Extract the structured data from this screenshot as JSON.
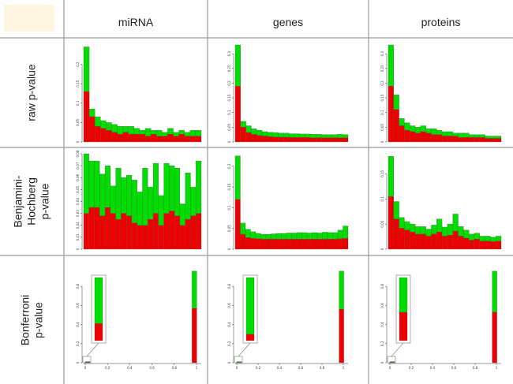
{
  "columns": [
    "miRNA",
    "genes",
    "proteins"
  ],
  "rows": [
    {
      "lines": [
        "raw p-value"
      ]
    },
    {
      "lines": [
        "Benjamini-",
        "Hochberg",
        "p-value"
      ]
    },
    {
      "lines": [
        "Bonferroni",
        "p-value"
      ]
    }
  ],
  "colors": {
    "total": "#00dd00",
    "significant": "#ee0000",
    "grid": "#999999",
    "frame": "#cfcfcf"
  },
  "chart_data": [
    {
      "type": "bar",
      "row": "raw p-value",
      "column": "miRNA",
      "ylim": [
        0,
        0.25
      ],
      "yticks": [
        0,
        0.05,
        0.1,
        0.15,
        0.2
      ],
      "total": [
        0.245,
        0.085,
        0.065,
        0.055,
        0.05,
        0.045,
        0.04,
        0.04,
        0.04,
        0.035,
        0.03,
        0.035,
        0.03,
        0.03,
        0.025,
        0.035,
        0.025,
        0.03,
        0.025,
        0.03,
        0.03
      ],
      "significant": [
        0.13,
        0.065,
        0.04,
        0.035,
        0.03,
        0.025,
        0.02,
        0.025,
        0.02,
        0.02,
        0.02,
        0.015,
        0.02,
        0.015,
        0.015,
        0.02,
        0.015,
        0.02,
        0.015,
        0.015,
        0.015
      ]
    },
    {
      "type": "bar",
      "row": "raw p-value",
      "column": "genes",
      "ylim": [
        0,
        0.33
      ],
      "yticks": [
        0,
        0.05,
        0.1,
        0.15,
        0.2,
        0.25,
        0.3
      ],
      "total": [
        0.33,
        0.07,
        0.055,
        0.045,
        0.04,
        0.035,
        0.033,
        0.032,
        0.03,
        0.03,
        0.028,
        0.028,
        0.027,
        0.027,
        0.026,
        0.026,
        0.025,
        0.025,
        0.025,
        0.026,
        0.025
      ],
      "significant": [
        0.19,
        0.05,
        0.032,
        0.026,
        0.022,
        0.02,
        0.018,
        0.017,
        0.016,
        0.016,
        0.015,
        0.015,
        0.015,
        0.015,
        0.014,
        0.014,
        0.014,
        0.014,
        0.014,
        0.014,
        0.014
      ]
    },
    {
      "type": "bar",
      "row": "raw p-value",
      "column": "proteins",
      "ylim": [
        0,
        0.33
      ],
      "yticks": [
        0,
        0.05,
        0.1,
        0.15,
        0.2,
        0.25,
        0.3
      ],
      "total": [
        0.33,
        0.16,
        0.08,
        0.065,
        0.055,
        0.05,
        0.055,
        0.045,
        0.045,
        0.04,
        0.035,
        0.035,
        0.03,
        0.03,
        0.03,
        0.025,
        0.025,
        0.025,
        0.02,
        0.02,
        0.02
      ],
      "significant": [
        0.19,
        0.11,
        0.055,
        0.04,
        0.035,
        0.03,
        0.035,
        0.03,
        0.025,
        0.025,
        0.02,
        0.02,
        0.02,
        0.015,
        0.015,
        0.015,
        0.015,
        0.015,
        0.012,
        0.012,
        0.012
      ]
    },
    {
      "type": "bar",
      "row": "Benjamini-Hochberg p-value",
      "column": "miRNA",
      "ylim": [
        0,
        0.08
      ],
      "yticks": [
        0,
        0.01,
        0.02,
        0.03,
        0.04,
        0.05,
        0.06,
        0.07,
        0.08
      ],
      "total": [
        0.08,
        0.074,
        0.074,
        0.063,
        0.07,
        0.053,
        0.068,
        0.06,
        0.062,
        0.058,
        0.048,
        0.068,
        0.052,
        0.072,
        0.045,
        0.072,
        0.07,
        0.068,
        0.038,
        0.064,
        0.052,
        0.074
      ],
      "significant": [
        0.03,
        0.035,
        0.035,
        0.028,
        0.035,
        0.03,
        0.025,
        0.03,
        0.028,
        0.022,
        0.02,
        0.02,
        0.025,
        0.03,
        0.02,
        0.03,
        0.032,
        0.028,
        0.02,
        0.025,
        0.028,
        0.03
      ]
    },
    {
      "type": "bar",
      "row": "Benjamini-Hochberg p-value",
      "column": "genes",
      "ylim": [
        0,
        0.23
      ],
      "yticks": [
        0,
        0.05,
        0.1,
        0.15,
        0.2
      ],
      "total": [
        0.225,
        0.063,
        0.048,
        0.042,
        0.038,
        0.036,
        0.036,
        0.037,
        0.038,
        0.038,
        0.039,
        0.039,
        0.04,
        0.04,
        0.039,
        0.04,
        0.039,
        0.041,
        0.04,
        0.04,
        0.046,
        0.056
      ],
      "significant": [
        0.12,
        0.036,
        0.028,
        0.026,
        0.025,
        0.024,
        0.024,
        0.024,
        0.024,
        0.024,
        0.024,
        0.024,
        0.024,
        0.024,
        0.024,
        0.024,
        0.024,
        0.024,
        0.024,
        0.024,
        0.025,
        0.026
      ]
    },
    {
      "type": "bar",
      "row": "Benjamini-Hochberg p-value",
      "column": "proteins",
      "ylim": [
        0,
        0.19
      ],
      "yticks": [
        0,
        0.05,
        0.1,
        0.15
      ],
      "total": [
        0.185,
        0.095,
        0.063,
        0.055,
        0.05,
        0.045,
        0.045,
        0.04,
        0.048,
        0.06,
        0.044,
        0.05,
        0.07,
        0.045,
        0.038,
        0.03,
        0.032,
        0.026,
        0.026,
        0.024,
        0.026
      ],
      "significant": [
        0.105,
        0.06,
        0.042,
        0.038,
        0.034,
        0.03,
        0.03,
        0.026,
        0.03,
        0.034,
        0.026,
        0.028,
        0.036,
        0.026,
        0.022,
        0.018,
        0.02,
        0.016,
        0.016,
        0.015,
        0.016
      ]
    },
    {
      "type": "bar",
      "row": "Bonferroni p-value",
      "column": "miRNA",
      "ylim": [
        0,
        1.0
      ],
      "xlim": [
        0,
        1.0
      ],
      "yticks": [
        0,
        0.2,
        0.4,
        0.6,
        0.8
      ],
      "xticks": [
        0,
        0.2,
        0.4,
        0.6,
        0.8,
        1.0
      ],
      "bars": [
        {
          "x": 0.0,
          "total": 0.012,
          "significant": 0.006
        },
        {
          "x": 0.96,
          "total": 0.96,
          "significant": 0.57
        }
      ],
      "inset": {
        "total": 1.0,
        "significant": 0.27
      }
    },
    {
      "type": "bar",
      "row": "Bonferroni p-value",
      "column": "genes",
      "ylim": [
        0,
        1.0
      ],
      "xlim": [
        0,
        1.0
      ],
      "yticks": [
        0,
        0.2,
        0.4,
        0.6,
        0.8
      ],
      "xticks": [
        0,
        0.2,
        0.4,
        0.6,
        0.8,
        1.0
      ],
      "bars": [
        {
          "x": 0.0,
          "total": 0.012,
          "significant": 0.004
        },
        {
          "x": 0.96,
          "total": 0.96,
          "significant": 0.56
        }
      ],
      "inset": {
        "total": 1.0,
        "significant": 0.1
      }
    },
    {
      "type": "bar",
      "row": "Bonferroni p-value",
      "column": "proteins",
      "ylim": [
        0,
        1.0
      ],
      "xlim": [
        0,
        1.0
      ],
      "yticks": [
        0,
        0.2,
        0.4,
        0.6,
        0.8
      ],
      "xticks": [
        0,
        0.2,
        0.4,
        0.6,
        0.8,
        1.0
      ],
      "bars": [
        {
          "x": 0.0,
          "total": 0.012,
          "significant": 0.006
        },
        {
          "x": 0.96,
          "total": 0.96,
          "significant": 0.53
        }
      ],
      "inset": {
        "total": 1.0,
        "significant": 0.45
      }
    }
  ]
}
